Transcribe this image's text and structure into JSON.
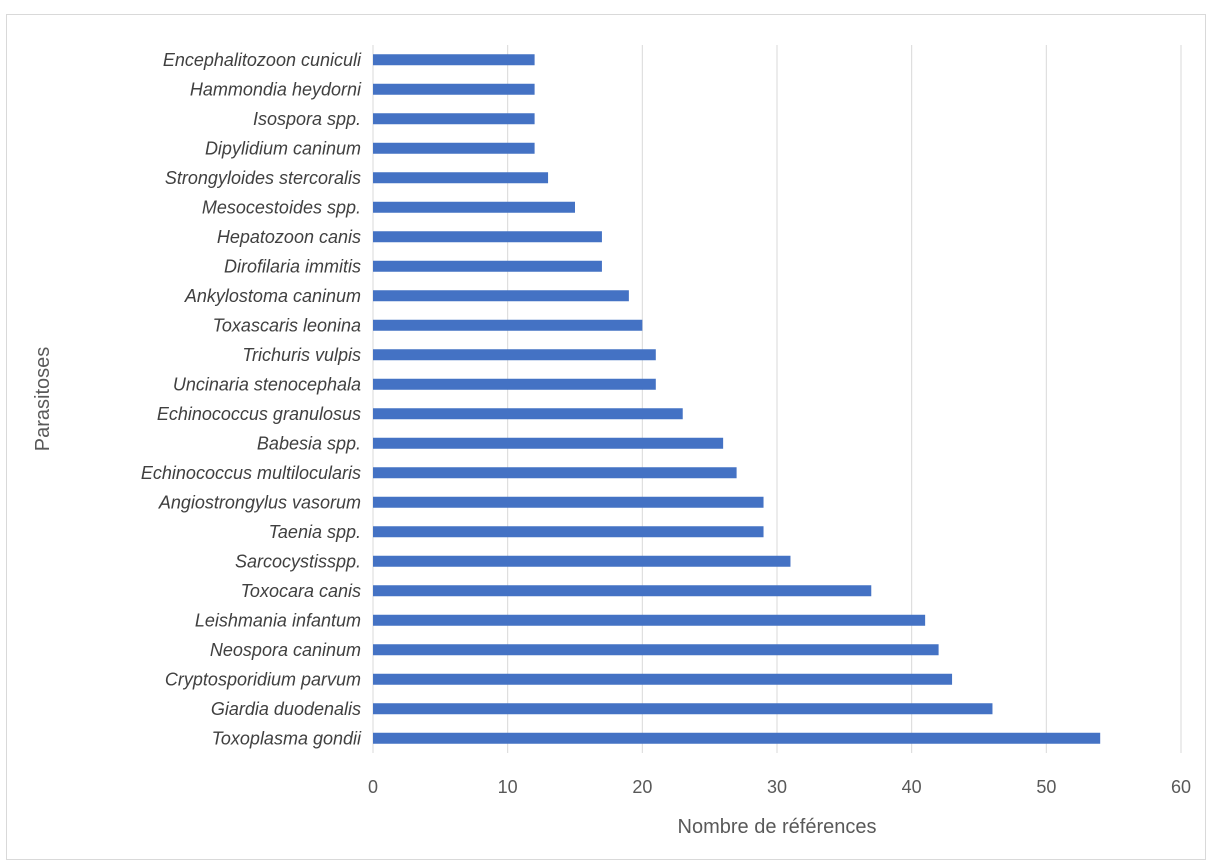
{
  "chart_data": {
    "type": "bar",
    "orientation": "horizontal",
    "title": "",
    "xlabel": "Nombre de références",
    "ylabel": "Parasitoses",
    "xlim": [
      0,
      60
    ],
    "xticks": [
      0,
      10,
      20,
      30,
      40,
      50,
      60
    ],
    "grid": true,
    "legend": "none",
    "bar_color": "#4472C4",
    "grid_color": "#d9d9d9",
    "categories": [
      "Encephalitozoon cuniculi",
      "Hammondia heydorni",
      "Isospora spp.",
      "Dipylidium caninum",
      "Strongyloides stercoralis",
      "Mesocestoides spp.",
      "Hepatozoon canis",
      "Dirofilaria immitis",
      "Ankylostoma caninum",
      "Toxascaris leonina",
      "Trichuris vulpis",
      "Uncinaria stenocephala",
      "Echinococcus granulosus",
      "Babesia spp.",
      "Echinococcus multilocularis",
      "Angiostrongylus vasorum",
      "Taenia spp.",
      "Sarcocystisspp.",
      "Toxocara canis",
      "Leishmania infantum",
      "Neospora caninum",
      "Cryptosporidium parvum",
      "Giardia duodenalis",
      "Toxoplasma gondii"
    ],
    "values": [
      12,
      12,
      12,
      12,
      13,
      15,
      17,
      17,
      19,
      20,
      21,
      21,
      23,
      26,
      27,
      29,
      29,
      31,
      37,
      41,
      42,
      43,
      46,
      54
    ]
  }
}
